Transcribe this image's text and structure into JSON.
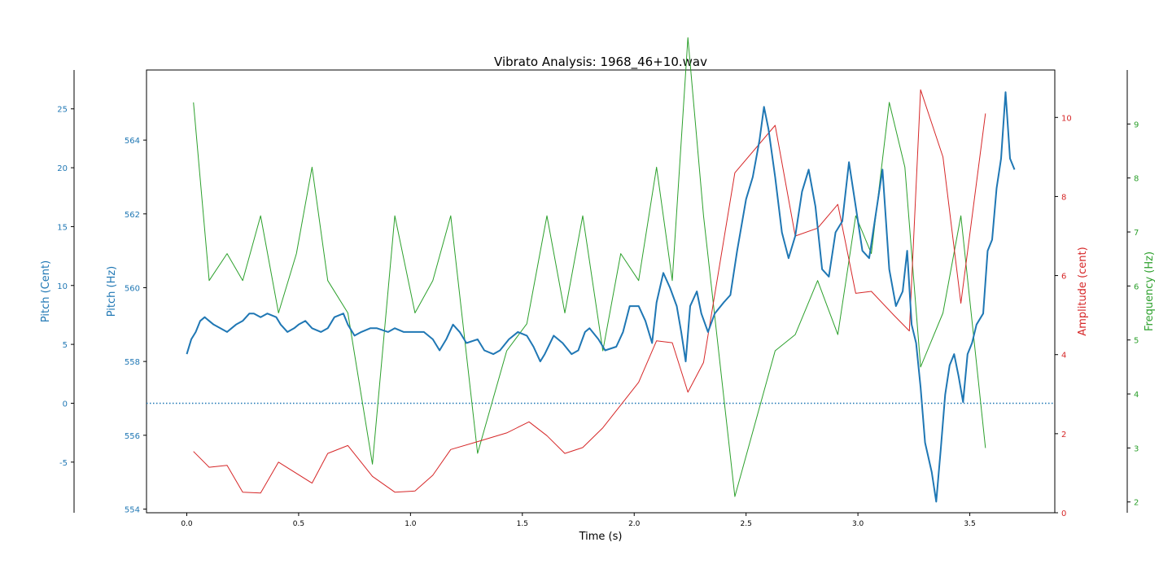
{
  "chart_data": {
    "type": "line",
    "title": "Vibrato Analysis: 1968_46+10.wav",
    "xlabel": "Time (s)",
    "xlim": [
      -0.18,
      3.88
    ],
    "xticks": [
      0.0,
      0.5,
      1.0,
      1.5,
      2.0,
      2.5,
      3.0,
      3.5
    ],
    "axes": {
      "pitch_hz": {
        "label": "Pitch (Hz)",
        "color": "#1f77b4",
        "lim": [
          553.9,
          565.9
        ],
        "ticks": [
          554,
          556,
          558,
          560,
          562,
          564
        ]
      },
      "pitch_cent": {
        "label": "Pitch (Cent)",
        "color": "#1f77b4",
        "lim": [
          -9.3,
          28.3
        ],
        "ticks": [
          -5,
          0,
          5,
          10,
          15,
          20,
          25
        ]
      },
      "amplitude": {
        "label": "Amplitude (cent)",
        "color": "#d62728",
        "lim": [
          0,
          11.2
        ],
        "ticks": [
          0,
          2,
          4,
          6,
          8,
          10
        ]
      },
      "frequency": {
        "label": "Frequency (Hz)",
        "color": "#2ca02c",
        "lim": [
          1.8,
          10.0
        ],
        "ticks": [
          2,
          3,
          4,
          5,
          6,
          7,
          8,
          9
        ]
      }
    },
    "series": [
      {
        "axis": "pitch_hz",
        "color": "#1f77b4",
        "points": [
          [
            0.0,
            558.2
          ],
          [
            0.02,
            558.6
          ],
          [
            0.04,
            558.8
          ],
          [
            0.06,
            559.1
          ],
          [
            0.08,
            559.2
          ],
          [
            0.1,
            559.1
          ],
          [
            0.12,
            559.0
          ],
          [
            0.15,
            558.9
          ],
          [
            0.18,
            558.8
          ],
          [
            0.2,
            558.9
          ],
          [
            0.22,
            559.0
          ],
          [
            0.25,
            559.1
          ],
          [
            0.28,
            559.3
          ],
          [
            0.3,
            559.3
          ],
          [
            0.33,
            559.2
          ],
          [
            0.36,
            559.3
          ],
          [
            0.4,
            559.2
          ],
          [
            0.42,
            559.0
          ],
          [
            0.45,
            558.8
          ],
          [
            0.48,
            558.9
          ],
          [
            0.5,
            559.0
          ],
          [
            0.53,
            559.1
          ],
          [
            0.56,
            558.9
          ],
          [
            0.6,
            558.8
          ],
          [
            0.63,
            558.9
          ],
          [
            0.66,
            559.2
          ],
          [
            0.7,
            559.3
          ],
          [
            0.72,
            559.0
          ],
          [
            0.75,
            558.7
          ],
          [
            0.78,
            558.8
          ],
          [
            0.82,
            558.9
          ],
          [
            0.85,
            558.9
          ],
          [
            0.9,
            558.8
          ],
          [
            0.93,
            558.9
          ],
          [
            0.97,
            558.8
          ],
          [
            1.0,
            558.8
          ],
          [
            1.03,
            558.8
          ],
          [
            1.06,
            558.8
          ],
          [
            1.1,
            558.6
          ],
          [
            1.13,
            558.3
          ],
          [
            1.16,
            558.6
          ],
          [
            1.19,
            559.0
          ],
          [
            1.22,
            558.8
          ],
          [
            1.25,
            558.5
          ],
          [
            1.3,
            558.6
          ],
          [
            1.33,
            558.3
          ],
          [
            1.37,
            558.2
          ],
          [
            1.4,
            558.3
          ],
          [
            1.44,
            558.6
          ],
          [
            1.48,
            558.8
          ],
          [
            1.52,
            558.7
          ],
          [
            1.55,
            558.4
          ],
          [
            1.58,
            558.0
          ],
          [
            1.6,
            558.2
          ],
          [
            1.64,
            558.7
          ],
          [
            1.68,
            558.5
          ],
          [
            1.72,
            558.2
          ],
          [
            1.75,
            558.3
          ],
          [
            1.78,
            558.8
          ],
          [
            1.8,
            558.9
          ],
          [
            1.84,
            558.6
          ],
          [
            1.87,
            558.3
          ],
          [
            1.92,
            558.4
          ],
          [
            1.95,
            558.8
          ],
          [
            1.98,
            559.5
          ],
          [
            2.02,
            559.5
          ],
          [
            2.05,
            559.1
          ],
          [
            2.08,
            558.5
          ],
          [
            2.1,
            559.6
          ],
          [
            2.13,
            560.4
          ],
          [
            2.16,
            560.0
          ],
          [
            2.19,
            559.5
          ],
          [
            2.21,
            558.8
          ],
          [
            2.23,
            558.0
          ],
          [
            2.25,
            559.5
          ],
          [
            2.28,
            559.9
          ],
          [
            2.3,
            559.3
          ],
          [
            2.33,
            558.8
          ],
          [
            2.36,
            559.3
          ],
          [
            2.4,
            559.6
          ],
          [
            2.43,
            559.8
          ],
          [
            2.46,
            561.0
          ],
          [
            2.5,
            562.4
          ],
          [
            2.53,
            563.0
          ],
          [
            2.56,
            564.0
          ],
          [
            2.58,
            564.9
          ],
          [
            2.6,
            564.3
          ],
          [
            2.63,
            563.0
          ],
          [
            2.66,
            561.5
          ],
          [
            2.69,
            560.8
          ],
          [
            2.72,
            561.4
          ],
          [
            2.75,
            562.6
          ],
          [
            2.78,
            563.2
          ],
          [
            2.81,
            562.2
          ],
          [
            2.84,
            560.5
          ],
          [
            2.87,
            560.3
          ],
          [
            2.9,
            561.5
          ],
          [
            2.93,
            561.8
          ],
          [
            2.96,
            563.4
          ],
          [
            2.99,
            562.2
          ],
          [
            3.02,
            561.0
          ],
          [
            3.05,
            560.8
          ],
          [
            3.08,
            562.0
          ],
          [
            3.11,
            563.2
          ],
          [
            3.14,
            560.5
          ],
          [
            3.17,
            559.5
          ],
          [
            3.2,
            559.9
          ],
          [
            3.22,
            561.0
          ],
          [
            3.24,
            559.0
          ],
          [
            3.26,
            558.5
          ],
          [
            3.28,
            557.3
          ],
          [
            3.3,
            555.8
          ],
          [
            3.33,
            555.0
          ],
          [
            3.35,
            554.2
          ],
          [
            3.37,
            555.6
          ],
          [
            3.39,
            557.1
          ],
          [
            3.41,
            557.9
          ],
          [
            3.43,
            558.2
          ],
          [
            3.45,
            557.6
          ],
          [
            3.47,
            556.9
          ],
          [
            3.49,
            558.2
          ],
          [
            3.51,
            558.5
          ],
          [
            3.53,
            559.0
          ],
          [
            3.56,
            559.3
          ],
          [
            3.58,
            561.0
          ],
          [
            3.6,
            561.3
          ],
          [
            3.62,
            562.7
          ],
          [
            3.64,
            563.5
          ],
          [
            3.66,
            565.3
          ],
          [
            3.68,
            563.5
          ],
          [
            3.7,
            563.2
          ]
        ]
      },
      {
        "axis": "amplitude",
        "color": "#d62728",
        "points": [
          [
            0.03,
            1.55
          ],
          [
            0.1,
            1.15
          ],
          [
            0.18,
            1.2
          ],
          [
            0.25,
            0.52
          ],
          [
            0.33,
            0.5
          ],
          [
            0.41,
            1.28
          ],
          [
            0.56,
            0.75
          ],
          [
            0.63,
            1.5
          ],
          [
            0.72,
            1.7
          ],
          [
            0.83,
            0.92
          ],
          [
            0.93,
            0.52
          ],
          [
            1.02,
            0.55
          ],
          [
            1.1,
            0.95
          ],
          [
            1.18,
            1.6
          ],
          [
            1.3,
            1.8
          ],
          [
            1.43,
            2.02
          ],
          [
            1.53,
            2.3
          ],
          [
            1.61,
            1.95
          ],
          [
            1.69,
            1.5
          ],
          [
            1.77,
            1.65
          ],
          [
            1.86,
            2.15
          ],
          [
            2.02,
            3.3
          ],
          [
            2.1,
            4.35
          ],
          [
            2.17,
            4.3
          ],
          [
            2.24,
            3.05
          ],
          [
            2.31,
            3.8
          ],
          [
            2.45,
            8.6
          ],
          [
            2.63,
            9.8
          ],
          [
            2.72,
            7.0
          ],
          [
            2.82,
            7.2
          ],
          [
            2.91,
            7.8
          ],
          [
            2.99,
            5.55
          ],
          [
            3.06,
            5.6
          ],
          [
            3.16,
            5.0
          ],
          [
            3.23,
            4.6
          ],
          [
            3.28,
            10.7
          ],
          [
            3.38,
            9.0
          ],
          [
            3.46,
            5.3
          ],
          [
            3.57,
            10.1
          ]
        ]
      },
      {
        "axis": "frequency",
        "color": "#2ca02c",
        "points": [
          [
            0.03,
            9.4
          ],
          [
            0.1,
            6.1
          ],
          [
            0.18,
            6.6
          ],
          [
            0.25,
            6.1
          ],
          [
            0.33,
            7.3
          ],
          [
            0.41,
            5.5
          ],
          [
            0.49,
            6.6
          ],
          [
            0.56,
            8.2
          ],
          [
            0.63,
            6.1
          ],
          [
            0.72,
            5.5
          ],
          [
            0.83,
            2.7
          ],
          [
            0.93,
            7.3
          ],
          [
            1.02,
            5.5
          ],
          [
            1.1,
            6.1
          ],
          [
            1.18,
            7.3
          ],
          [
            1.3,
            2.9
          ],
          [
            1.43,
            4.8
          ],
          [
            1.52,
            5.3
          ],
          [
            1.61,
            7.3
          ],
          [
            1.69,
            5.5
          ],
          [
            1.77,
            7.3
          ],
          [
            1.86,
            4.8
          ],
          [
            1.94,
            6.6
          ],
          [
            2.02,
            6.1
          ],
          [
            2.1,
            8.2
          ],
          [
            2.17,
            6.1
          ],
          [
            2.24,
            10.6
          ],
          [
            2.31,
            7.3
          ],
          [
            2.45,
            2.1
          ],
          [
            2.63,
            4.8
          ],
          [
            2.72,
            5.1
          ],
          [
            2.82,
            6.1
          ],
          [
            2.91,
            5.1
          ],
          [
            2.99,
            7.3
          ],
          [
            3.06,
            6.6
          ],
          [
            3.14,
            9.4
          ],
          [
            3.21,
            8.2
          ],
          [
            3.28,
            4.5
          ],
          [
            3.38,
            5.5
          ],
          [
            3.46,
            7.3
          ],
          [
            3.57,
            3.0
          ]
        ]
      }
    ],
    "reference_line": {
      "axis": "pitch_cent",
      "value": 0,
      "style": "dotted",
      "color": "#1f77b4"
    }
  }
}
